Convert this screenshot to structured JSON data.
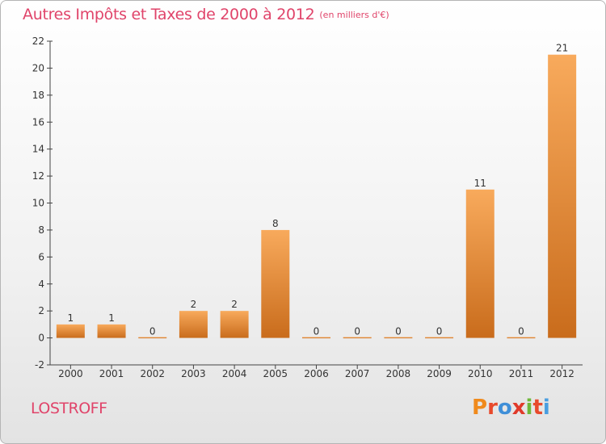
{
  "title": "Autres Impôts et Taxes de 2000 à 2012",
  "title_unit": "(en milliers d'€)",
  "commune": "LOSTROFF",
  "logo_text": "Proxiti",
  "colors": {
    "title": "#e0446a",
    "bar_top": "#f8aa5c",
    "bar_bottom": "#c96c1c",
    "logo": [
      "#f08a1c",
      "#e84a2c",
      "#3f8fd8",
      "#e03a2a",
      "#6fb83a",
      "#e84a2c",
      "#4a9ee0"
    ]
  },
  "chart_data": {
    "type": "bar",
    "title": "Autres Impôts et Taxes de 2000 à 2012",
    "subtitle": "(en milliers d'€)",
    "categories": [
      "2000",
      "2001",
      "2002",
      "2003",
      "2004",
      "2005",
      "2006",
      "2007",
      "2008",
      "2009",
      "2010",
      "2011",
      "2012"
    ],
    "values": [
      1,
      1,
      0,
      2,
      2,
      8,
      0,
      0,
      0,
      0,
      11,
      0,
      21
    ],
    "ylim": [
      -2,
      22
    ],
    "yticks": [
      -2,
      0,
      2,
      4,
      6,
      8,
      10,
      12,
      14,
      16,
      18,
      20,
      22
    ],
    "grid": false,
    "legend": "none"
  }
}
